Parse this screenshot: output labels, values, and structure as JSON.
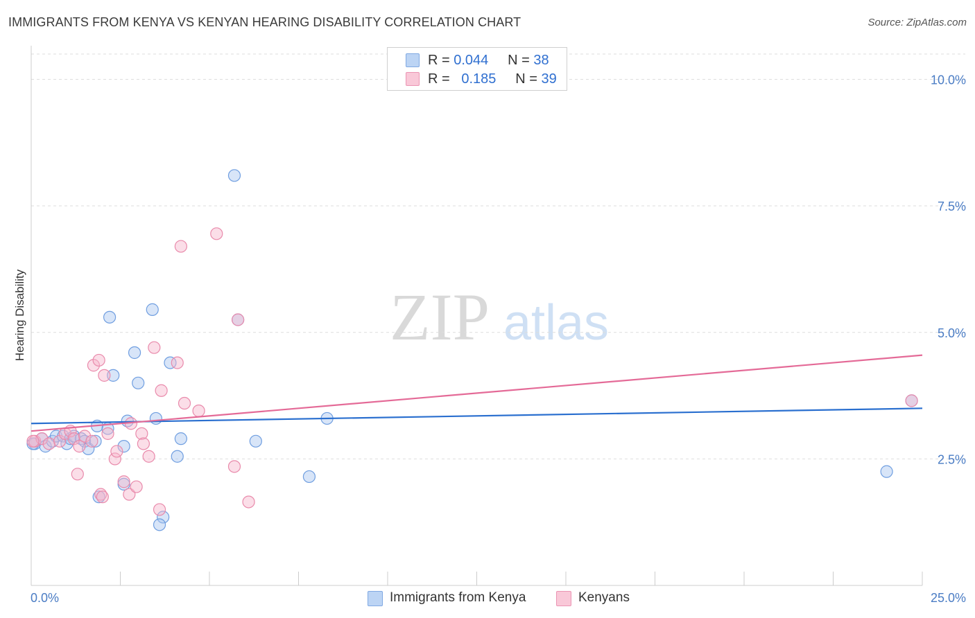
{
  "title": "IMMIGRANTS FROM KENYA VS KENYAN HEARING DISABILITY CORRELATION CHART",
  "source": "Source: ZipAtlas.com",
  "watermark": {
    "zip": "ZIP",
    "atlas": "atlas"
  },
  "legend": {
    "r_label": "R =",
    "n_label": "N =",
    "series": [
      {
        "r": "0.044",
        "n": "38"
      },
      {
        "r": "0.185",
        "n": "39"
      }
    ]
  },
  "colors": {
    "blue_fill": "#a9c6f0",
    "blue_stroke": "#6f9ee0",
    "blue_line": "#2a6fcf",
    "pink_fill": "#f6b6cb",
    "pink_stroke": "#e98aab",
    "pink_line": "#e46a97",
    "tick_text": "#4a7cc4",
    "grid": "#dddddd"
  },
  "chart_data": {
    "type": "scatter",
    "title": "IMMIGRANTS FROM KENYA VS KENYAN HEARING DISABILITY CORRELATION CHART",
    "xlabel": "",
    "ylabel": "Hearing Disability",
    "xlim": [
      0,
      25
    ],
    "ylim": [
      0,
      10.5
    ],
    "x_tick_labels": [
      "0.0%",
      "25.0%"
    ],
    "y_ticks": [
      2.5,
      5.0,
      7.5,
      10.0
    ],
    "y_tick_labels": [
      "2.5%",
      "5.0%",
      "7.5%",
      "10.0%"
    ],
    "legend_position": "top-center",
    "series": [
      {
        "name": "Immigrants from Kenya",
        "color": "blue",
        "points": [
          [
            0.1,
            2.8
          ],
          [
            0.3,
            2.9
          ],
          [
            0.4,
            2.75
          ],
          [
            0.6,
            2.85
          ],
          [
            0.7,
            2.95
          ],
          [
            0.9,
            2.95
          ],
          [
            1.0,
            2.8
          ],
          [
            1.1,
            2.9
          ],
          [
            1.2,
            2.95
          ],
          [
            1.4,
            2.9
          ],
          [
            1.5,
            2.85
          ],
          [
            1.6,
            2.7
          ],
          [
            1.8,
            2.85
          ],
          [
            1.85,
            3.15
          ],
          [
            2.2,
            5.3
          ],
          [
            2.3,
            4.15
          ],
          [
            2.15,
            3.1
          ],
          [
            2.6,
            2.75
          ],
          [
            2.7,
            3.25
          ],
          [
            2.9,
            4.6
          ],
          [
            3.0,
            4.0
          ],
          [
            3.4,
            5.45
          ],
          [
            3.5,
            3.3
          ],
          [
            3.9,
            4.4
          ],
          [
            4.2,
            2.9
          ],
          [
            4.1,
            2.55
          ],
          [
            5.7,
            8.1
          ],
          [
            5.8,
            5.25
          ],
          [
            6.3,
            2.85
          ],
          [
            7.8,
            2.15
          ],
          [
            8.3,
            3.3
          ],
          [
            1.9,
            1.75
          ],
          [
            3.7,
            1.35
          ],
          [
            3.6,
            1.2
          ],
          [
            2.6,
            2.0
          ],
          [
            24.0,
            2.25
          ],
          [
            24.7,
            3.65
          ],
          [
            0.05,
            2.8
          ]
        ],
        "trend": {
          "x": [
            0,
            25
          ],
          "y": [
            3.2,
            3.5
          ]
        }
      },
      {
        "name": "Kenyans",
        "color": "pink",
        "points": [
          [
            0.1,
            2.85
          ],
          [
            0.3,
            2.9
          ],
          [
            0.5,
            2.8
          ],
          [
            0.8,
            2.85
          ],
          [
            0.95,
            3.0
          ],
          [
            1.1,
            3.05
          ],
          [
            1.2,
            2.9
          ],
          [
            1.3,
            2.2
          ],
          [
            1.35,
            2.75
          ],
          [
            1.5,
            2.95
          ],
          [
            1.7,
            2.85
          ],
          [
            1.75,
            4.35
          ],
          [
            1.9,
            4.45
          ],
          [
            2.05,
            4.15
          ],
          [
            2.15,
            3.0
          ],
          [
            2.35,
            2.5
          ],
          [
            2.4,
            2.65
          ],
          [
            2.6,
            2.05
          ],
          [
            2.75,
            1.8
          ],
          [
            2.8,
            3.2
          ],
          [
            2.95,
            1.95
          ],
          [
            3.1,
            3.0
          ],
          [
            3.15,
            2.8
          ],
          [
            3.3,
            2.55
          ],
          [
            3.45,
            4.7
          ],
          [
            3.6,
            1.5
          ],
          [
            3.65,
            3.85
          ],
          [
            4.1,
            4.4
          ],
          [
            4.2,
            6.7
          ],
          [
            4.3,
            3.6
          ],
          [
            4.7,
            3.45
          ],
          [
            5.2,
            6.95
          ],
          [
            5.7,
            2.35
          ],
          [
            5.8,
            5.25
          ],
          [
            6.1,
            1.65
          ],
          [
            24.7,
            3.65
          ],
          [
            1.95,
            1.8
          ],
          [
            2.0,
            1.75
          ],
          [
            0.05,
            2.85
          ]
        ],
        "trend": {
          "x": [
            0,
            25
          ],
          "y": [
            3.05,
            4.55
          ]
        }
      }
    ]
  },
  "bottom_legend": [
    "Immigrants from Kenya",
    "Kenyans"
  ]
}
